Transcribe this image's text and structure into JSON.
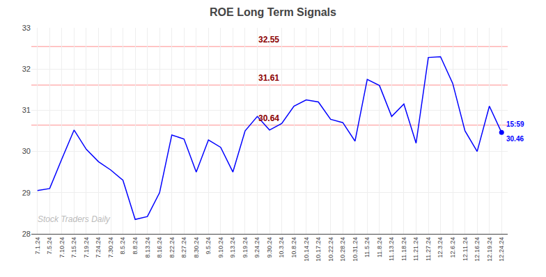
{
  "chart_data": {
    "type": "line",
    "title": "ROE Long Term Signals",
    "categories": [
      "7.1.24",
      "7.5.24",
      "7.10.24",
      "7.15.24",
      "7.19.24",
      "7.24.24",
      "7.30.24",
      "8.5.24",
      "8.8.24",
      "8.13.24",
      "8.16.24",
      "8.22.24",
      "8.27.24",
      "8.30.24",
      "9.5.24",
      "9.10.24",
      "9.13.24",
      "9.19.24",
      "9.24.24",
      "9.30.24",
      "10.3.24",
      "10.8.24",
      "10.14.24",
      "10.17.24",
      "10.22.24",
      "10.28.24",
      "10.31.24",
      "11.5.24",
      "11.8.24",
      "11.13.24",
      "11.18.24",
      "11.21.24",
      "11.27.24",
      "12.3.24",
      "12.6.24",
      "12.11.24",
      "12.16.24",
      "12.19.24",
      "12.24.24"
    ],
    "values": [
      29.05,
      29.1,
      29.82,
      30.52,
      30.05,
      29.75,
      29.55,
      29.3,
      28.35,
      28.42,
      29.0,
      30.4,
      30.3,
      29.5,
      30.28,
      30.1,
      29.5,
      30.5,
      30.85,
      30.52,
      30.68,
      31.1,
      31.25,
      31.2,
      30.78,
      30.7,
      30.25,
      31.75,
      31.6,
      30.85,
      31.15,
      30.2,
      32.28,
      32.3,
      31.65,
      30.5,
      30.0,
      31.1,
      30.46
    ],
    "color": "blue",
    "marker": "last",
    "reference_lines": [
      {
        "value": 30.64,
        "label": "30.64"
      },
      {
        "value": 31.61,
        "label": "31.61"
      },
      {
        "value": 32.55,
        "label": "32.55"
      }
    ],
    "reference_line_color": "#ffb3b3",
    "reference_label_color": "darkred",
    "annotations": [
      {
        "text": "15:59"
      },
      {
        "text": "30.46"
      }
    ],
    "watermark": {
      "text": "Stock Traders Daily",
      "color": "#bbbbbb"
    },
    "ylim": [
      28.0,
      33.0
    ],
    "yticks": [
      28,
      29,
      30,
      31,
      32,
      33
    ],
    "grid": true
  }
}
